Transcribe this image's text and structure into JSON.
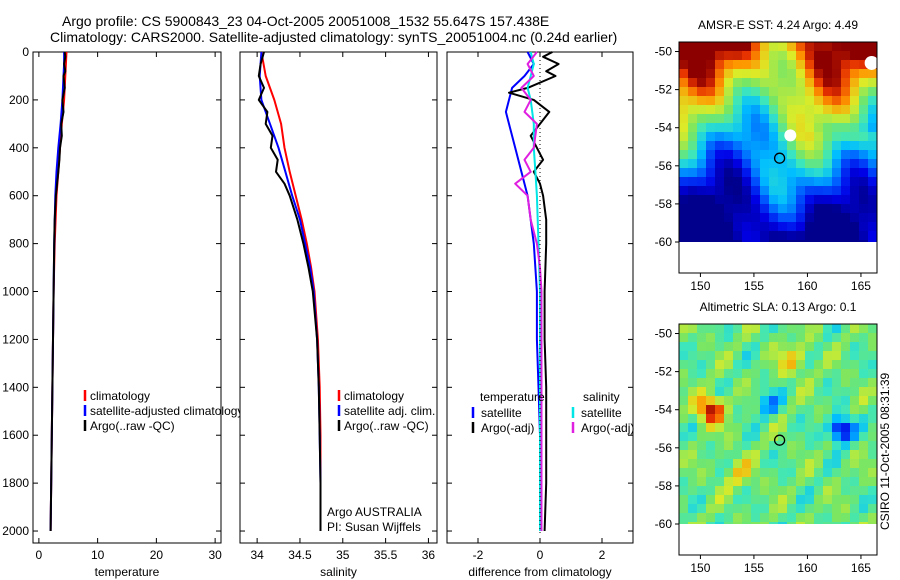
{
  "title": {
    "line1": "Argo profile: CS 5900843_23 04-Oct-2005 20051008_1532 55.647S 157.438E",
    "line2": "Climatology: CARS2000. Satellite-adjusted climatology: synTS_20051004.nc (0.24d earlier)"
  },
  "watermark": "CSIRO 11-Oct-2005 08:31:39",
  "colors": {
    "red": "#ff0000",
    "blue": "#0000ff",
    "black": "#000000",
    "cyan": "#00e5e5",
    "magenta": "#e020e0"
  },
  "chart_data": [
    {
      "id": "temperature",
      "type": "line",
      "xlabel": "temperature",
      "ylabel": "",
      "xlim": [
        -1,
        31
      ],
      "ylim": [
        2050,
        0
      ],
      "xticks": [
        0,
        10,
        20,
        30
      ],
      "xtick_labels": [
        "0",
        "10",
        "20",
        "30"
      ],
      "yticks": [
        0,
        200,
        400,
        600,
        800,
        1000,
        1200,
        1400,
        1600,
        1800,
        2000
      ],
      "ytick_labels": [
        "0",
        "200",
        "400",
        "600",
        "800",
        "1000",
        "1200",
        "1400",
        "1600",
        "1800",
        "2000"
      ],
      "legend": [
        "climatology",
        "satellite-adjusted climatology",
        "Argo(..raw -QC)"
      ],
      "legend_position": "lower-right",
      "series": [
        {
          "name": "climatology",
          "color": "red",
          "depth": [
            0,
            50,
            100,
            200,
            300,
            400,
            500,
            600,
            800,
            1000,
            1200,
            1400,
            1600,
            1800,
            2000
          ],
          "values": [
            4.7,
            4.6,
            4.5,
            4.3,
            3.9,
            3.6,
            3.3,
            3.0,
            2.7,
            2.5,
            2.4,
            2.3,
            2.2,
            2.1,
            2.0
          ]
        },
        {
          "name": "satellite-adjusted climatology",
          "color": "blue",
          "depth": [
            0,
            50,
            100,
            200,
            300,
            400,
            500,
            600,
            800,
            1000,
            1200,
            1400,
            1600,
            1800,
            2000
          ],
          "values": [
            4.3,
            4.3,
            4.2,
            4.0,
            3.7,
            3.3,
            3.0,
            2.8,
            2.6,
            2.5,
            2.4,
            2.3,
            2.2,
            2.1,
            2.0
          ]
        },
        {
          "name": "Argo(..raw -QC)",
          "color": "black",
          "depth": [
            0,
            20,
            50,
            80,
            100,
            150,
            200,
            250,
            300,
            350,
            400,
            450,
            500,
            550,
            600,
            700,
            800,
            1000,
            1200,
            1400,
            1600,
            1800,
            2000
          ],
          "values": [
            4.4,
            4.5,
            4.3,
            4.5,
            4.2,
            4.4,
            4.0,
            4.2,
            3.8,
            3.9,
            3.6,
            3.5,
            3.3,
            3.1,
            2.9,
            2.7,
            2.6,
            2.5,
            2.4,
            2.3,
            2.2,
            2.1,
            2.0
          ]
        }
      ]
    },
    {
      "id": "salinity",
      "type": "line",
      "xlabel": "salinity",
      "ylabel": "",
      "xlim": [
        33.8,
        36.1
      ],
      "xticks": [
        34,
        34.5,
        35,
        35.5,
        36
      ],
      "xtick_labels": [
        "34",
        "34.5",
        "35",
        "35.5",
        "36"
      ],
      "legend": [
        "climatology",
        "satellite adj. clim.",
        "Argo(..raw -QC)"
      ],
      "legend_position": "lower-right",
      "annotations": [
        "Argo AUSTRALIA",
        "PI: Susan Wijffels"
      ],
      "series": [
        {
          "name": "climatology",
          "color": "red",
          "depth": [
            0,
            100,
            200,
            300,
            400,
            500,
            600,
            700,
            800,
            900,
            1000,
            1200,
            1400,
            1600,
            1800,
            2000
          ],
          "values": [
            34.05,
            34.1,
            34.2,
            34.28,
            34.32,
            34.38,
            34.45,
            34.52,
            34.58,
            34.63,
            34.67,
            34.71,
            34.73,
            34.74,
            34.74,
            34.74
          ]
        },
        {
          "name": "satellite adj. clim.",
          "color": "blue",
          "depth": [
            0,
            100,
            200,
            300,
            400,
            500,
            600,
            700,
            800,
            900,
            1000,
            1200,
            1400,
            1600,
            1800,
            2000
          ],
          "values": [
            34.05,
            34.03,
            34.05,
            34.15,
            34.25,
            34.33,
            34.41,
            34.5,
            34.56,
            34.62,
            34.66,
            34.7,
            34.72,
            34.73,
            34.74,
            34.74
          ]
        },
        {
          "name": "Argo(..raw -QC)",
          "color": "black",
          "depth": [
            0,
            50,
            100,
            150,
            200,
            250,
            300,
            350,
            400,
            450,
            500,
            550,
            600,
            700,
            800,
            900,
            1000,
            1200,
            1400,
            1600,
            1800,
            2000
          ],
          "values": [
            34.08,
            34.04,
            34.02,
            34.08,
            34.02,
            34.12,
            34.1,
            34.18,
            34.16,
            34.24,
            34.22,
            34.32,
            34.38,
            34.47,
            34.54,
            34.6,
            34.65,
            34.7,
            34.72,
            34.73,
            34.74,
            34.74
          ]
        }
      ]
    },
    {
      "id": "difference",
      "type": "line",
      "xlabel": "difference from climatology",
      "ylabel": "",
      "xlim": [
        -3,
        3
      ],
      "xticks": [
        -2,
        0,
        2
      ],
      "xtick_labels": [
        "-2",
        "0",
        "2"
      ],
      "legend_header": [
        "temperature",
        "salinity"
      ],
      "legend": [
        "satellite",
        "Argo(-adj)",
        "satellite",
        "Argo(-adj)"
      ],
      "legend_position": "lower-right",
      "series": [
        {
          "name": "temperature satellite",
          "color": "blue",
          "depth": [
            0,
            50,
            100,
            150,
            200,
            250,
            300,
            400,
            500,
            600,
            700,
            800,
            1000,
            1200,
            1400,
            1600,
            1800,
            2000
          ],
          "values": [
            -0.4,
            -0.2,
            -0.5,
            -0.9,
            -1.0,
            -1.1,
            -1.0,
            -0.8,
            -0.6,
            -0.4,
            -0.3,
            -0.2,
            -0.1,
            -0.1,
            -0.05,
            0,
            0,
            0
          ]
        },
        {
          "name": "temperature Argo(-adj)",
          "color": "black",
          "depth": [
            0,
            20,
            50,
            80,
            100,
            150,
            170,
            200,
            250,
            300,
            350,
            400,
            450,
            500,
            550,
            600,
            700,
            800,
            1000,
            1200,
            1400,
            1600,
            1800,
            2000
          ],
          "values": [
            0.4,
            0.1,
            0.6,
            0.2,
            0.5,
            -0.4,
            -1.0,
            -0.2,
            0.3,
            0.0,
            -0.3,
            -0.1,
            0.1,
            -0.2,
            0.0,
            0.1,
            0.2,
            0.2,
            0.15,
            0.15,
            0.2,
            0.2,
            0.2,
            0.15
          ]
        },
        {
          "name": "salinity satellite",
          "color": "cyan",
          "depth": [
            0,
            50,
            100,
            150,
            200,
            300,
            400,
            500,
            600,
            800,
            1000,
            1200,
            1400,
            1600,
            1800,
            2000
          ],
          "values": [
            -0.3,
            -0.2,
            -0.3,
            -0.4,
            -0.3,
            -0.2,
            -0.2,
            -0.15,
            -0.1,
            -0.05,
            0,
            0,
            0,
            0,
            0,
            0
          ]
        },
        {
          "name": "salinity Argo(-adj)",
          "color": "magenta",
          "depth": [
            0,
            50,
            100,
            150,
            200,
            250,
            300,
            400,
            450,
            500,
            550,
            600,
            700,
            800,
            900,
            1000,
            1200,
            1400,
            1600,
            1800,
            2000
          ],
          "values": [
            -0.1,
            -0.4,
            -0.2,
            -0.6,
            -0.3,
            -0.5,
            -0.1,
            -0.2,
            -0.5,
            -0.3,
            -0.8,
            -0.4,
            -0.3,
            -0.1,
            0.0,
            0.05,
            0.05,
            0.05,
            0.05,
            0.05,
            0.05
          ]
        }
      ]
    },
    {
      "id": "sst-map",
      "type": "heatmap",
      "title": "AMSR-E SST: 4.24 Argo: 4.49",
      "xlim": [
        148,
        166.5
      ],
      "ylim": [
        -60,
        -49.5
      ],
      "yticks": [
        -50,
        -52,
        -54,
        -56,
        -58,
        -60
      ],
      "ytick_labels": [
        "-50",
        "-52",
        "-54",
        "-56",
        "-58",
        "-60"
      ],
      "xticks": [
        150,
        155,
        160,
        165
      ],
      "xtick_labels": [
        "150",
        "155",
        "160",
        "165"
      ],
      "data_extent_lat": [
        -60,
        -49.5
      ],
      "marker": {
        "lon": 157.4,
        "lat": -55.6
      }
    },
    {
      "id": "sla-map",
      "type": "heatmap",
      "title": "Altimetric SLA: 0.13 Argo: 0.1",
      "xlim": [
        148,
        166.5
      ],
      "ylim": [
        -60,
        -49.5
      ],
      "yticks": [
        -50,
        -52,
        -54,
        -56,
        -58,
        -60
      ],
      "ytick_labels": [
        "-50",
        "-52",
        "-54",
        "-56",
        "-58",
        "-60"
      ],
      "xticks": [
        150,
        155,
        160,
        165
      ],
      "xtick_labels": [
        "150",
        "155",
        "160",
        "165"
      ],
      "data_extent_lat": [
        -60,
        -49.5
      ],
      "marker": {
        "lon": 157.4,
        "lat": -55.6
      }
    }
  ]
}
